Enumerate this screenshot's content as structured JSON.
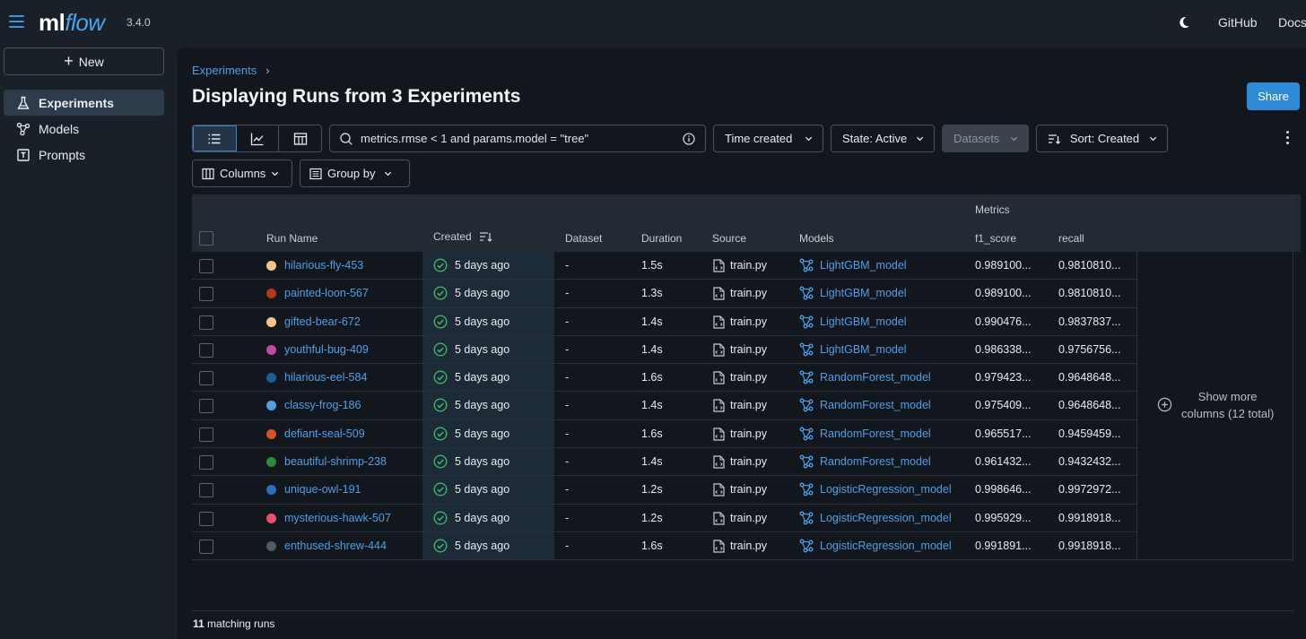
{
  "app": {
    "logo_ml": "ml",
    "logo_flow": "flow",
    "version": "3.4.0",
    "top_links": [
      "GitHub",
      "Docs"
    ],
    "accent": "#3b93e8"
  },
  "sidebar": {
    "new_label": "New",
    "items": [
      {
        "label": "Experiments",
        "icon": "beaker-icon",
        "active": true
      },
      {
        "label": "Models",
        "icon": "models-icon",
        "active": false
      },
      {
        "label": "Prompts",
        "icon": "prompts-icon",
        "active": false
      }
    ]
  },
  "header": {
    "breadcrumb": "Experiments",
    "title": "Displaying Runs from 3 Experiments",
    "share_label": "Share"
  },
  "toolbar": {
    "search_value": "metrics.rmse < 1 and params.model = \"tree\"",
    "time_filter": "Time created",
    "state_filter": "State: Active",
    "datasets_filter": "Datasets",
    "sort_label": "Sort: Created",
    "columns_label": "Columns",
    "group_by_label": "Group by"
  },
  "table": {
    "group_header": "Metrics",
    "columns": [
      "Run Name",
      "Created",
      "Dataset",
      "Duration",
      "Source",
      "Models",
      "f1_score",
      "recall"
    ],
    "rows": [
      {
        "run": "hilarious-fly-453",
        "color": "#f7c48b",
        "created": "5 days ago",
        "dataset": "-",
        "duration": "1.5s",
        "source": "train.py",
        "model": "LightGBM_model",
        "f1": "0.989100...",
        "recall": "0.9810810..."
      },
      {
        "run": "painted-loon-567",
        "color": "#b3391b",
        "created": "5 days ago",
        "dataset": "-",
        "duration": "1.3s",
        "source": "train.py",
        "model": "LightGBM_model",
        "f1": "0.989100...",
        "recall": "0.9810810..."
      },
      {
        "run": "gifted-bear-672",
        "color": "#f7c48b",
        "created": "5 days ago",
        "dataset": "-",
        "duration": "1.4s",
        "source": "train.py",
        "model": "LightGBM_model",
        "f1": "0.990476...",
        "recall": "0.9837837..."
      },
      {
        "run": "youthful-bug-409",
        "color": "#c04a9e",
        "created": "5 days ago",
        "dataset": "-",
        "duration": "1.4s",
        "source": "train.py",
        "model": "LightGBM_model",
        "f1": "0.986338...",
        "recall": "0.9756756..."
      },
      {
        "run": "hilarious-eel-584",
        "color": "#1f5c94",
        "created": "5 days ago",
        "dataset": "-",
        "duration": "1.6s",
        "source": "train.py",
        "model": "RandomForest_model",
        "f1": "0.979423...",
        "recall": "0.9648648..."
      },
      {
        "run": "classy-frog-186",
        "color": "#4aa3ea",
        "created": "5 days ago",
        "dataset": "-",
        "duration": "1.4s",
        "source": "train.py",
        "model": "RandomForest_model",
        "f1": "0.975409...",
        "recall": "0.9648648..."
      },
      {
        "run": "defiant-seal-509",
        "color": "#d9541f",
        "created": "5 days ago",
        "dataset": "-",
        "duration": "1.6s",
        "source": "train.py",
        "model": "RandomForest_model",
        "f1": "0.965517...",
        "recall": "0.9459459..."
      },
      {
        "run": "beautiful-shrimp-238",
        "color": "#2d8a3a",
        "created": "5 days ago",
        "dataset": "-",
        "duration": "1.4s",
        "source": "train.py",
        "model": "RandomForest_model",
        "f1": "0.961432...",
        "recall": "0.9432432..."
      },
      {
        "run": "unique-owl-191",
        "color": "#2a6fbd",
        "created": "5 days ago",
        "dataset": "-",
        "duration": "1.2s",
        "source": "train.py",
        "model": "LogisticRegression_model",
        "f1": "0.998646...",
        "recall": "0.9972972..."
      },
      {
        "run": "mysterious-hawk-507",
        "color": "#e8506b",
        "created": "5 days ago",
        "dataset": "-",
        "duration": "1.2s",
        "source": "train.py",
        "model": "LogisticRegression_model",
        "f1": "0.995929...",
        "recall": "0.9918918..."
      },
      {
        "run": "enthused-shrew-444",
        "color": "#4f5b66",
        "created": "5 days ago",
        "dataset": "-",
        "duration": "1.6s",
        "source": "train.py",
        "model": "LogisticRegression_model",
        "f1": "0.991891...",
        "recall": "0.9918918..."
      }
    ],
    "show_more": [
      "Show more",
      "columns (12 total)"
    ]
  },
  "footer": {
    "count": "11",
    "suffix": " matching runs"
  }
}
